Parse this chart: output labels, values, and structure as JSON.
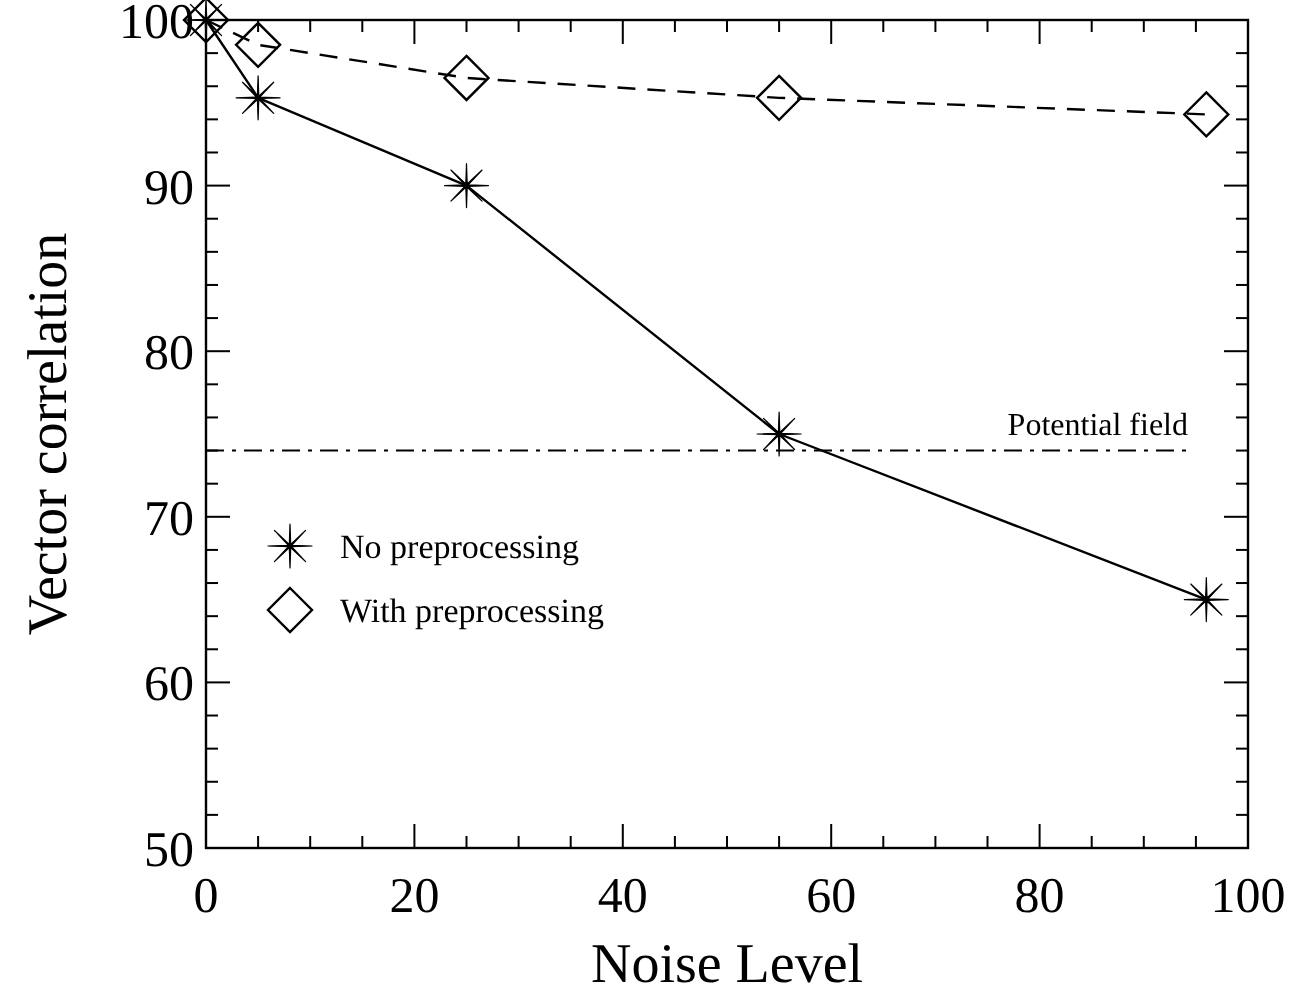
{
  "chart_data": {
    "type": "line",
    "xlabel": "Noise Level",
    "ylabel": "Vector correlation",
    "x": [
      0,
      5,
      25,
      55,
      96
    ],
    "series": [
      {
        "name": "No preprocessing",
        "color": "#000000",
        "values": [
          100,
          95.3,
          90,
          75,
          65
        ],
        "marker": "star",
        "line_style": "solid"
      },
      {
        "name": "With preprocessing",
        "color": "#000000",
        "values": [
          100,
          98.5,
          96.5,
          95.3,
          94.3
        ],
        "marker": "diamond",
        "line_style": "dashed"
      }
    ],
    "xlim": [
      0,
      100
    ],
    "xticks": [
      0,
      {
        "value": 5,
        "label": null
      },
      {
        "value": 10,
        "label": null
      },
      {
        "value": 15,
        "label": null
      },
      20,
      {
        "value": 25,
        "label": null
      },
      {
        "value": 30,
        "label": null
      },
      {
        "value": 35,
        "label": null
      },
      40,
      {
        "value": 45,
        "label": null
      },
      {
        "value": 50,
        "label": null
      },
      {
        "value": 55,
        "label": null
      },
      60,
      {
        "value": 65,
        "label": null
      },
      {
        "value": 70,
        "label": null
      },
      {
        "value": 75,
        "label": null
      },
      80,
      {
        "value": 85,
        "label": null
      },
      {
        "value": 90,
        "label": null
      },
      {
        "value": 95,
        "label": null
      },
      100
    ],
    "ylim": [
      50,
      100
    ],
    "yticks": [
      50,
      {
        "value": 52,
        "label": null
      },
      {
        "value": 54,
        "label": null
      },
      {
        "value": 56,
        "label": null
      },
      {
        "value": 58,
        "label": null
      },
      60,
      {
        "value": 62,
        "label": null
      },
      {
        "value": 64,
        "label": null
      },
      {
        "value": 66,
        "label": null
      },
      {
        "value": 68,
        "label": null
      },
      70,
      {
        "value": 72,
        "label": null
      },
      {
        "value": 74,
        "label": null
      },
      {
        "value": 76,
        "label": null
      },
      {
        "value": 78,
        "label": null
      },
      80,
      {
        "value": 82,
        "label": null
      },
      {
        "value": 84,
        "label": null
      },
      {
        "value": 86,
        "label": null
      },
      {
        "value": 88,
        "label": null
      },
      90,
      {
        "value": 92,
        "label": null
      },
      {
        "value": 94,
        "label": null
      },
      {
        "value": 96,
        "label": null
      },
      {
        "value": 98,
        "label": null
      },
      100
    ],
    "ref_lines": [
      {
        "axis": "y",
        "value": 74,
        "label": "Potential field",
        "line_style": "dashdot",
        "color": "#000000"
      }
    ],
    "grid": false,
    "legend": "left"
  }
}
